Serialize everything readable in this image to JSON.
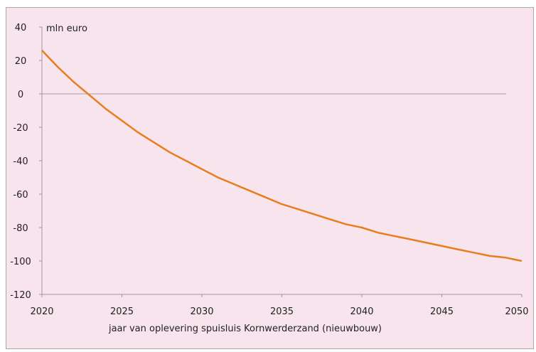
{
  "chart_data": {
    "type": "line",
    "title": "",
    "unit_label": "mln euro",
    "xlabel": "jaar van oplevering spuisluis Kornwerderzand (nieuwbouw)",
    "ylabel": "",
    "xlim": [
      2020,
      2050
    ],
    "ylim": [
      -120,
      40
    ],
    "x_ticks": [
      2020,
      2025,
      2030,
      2035,
      2040,
      2045,
      2050
    ],
    "y_ticks": [
      40,
      20,
      0,
      -20,
      -40,
      -60,
      -80,
      -100,
      -120
    ],
    "grid": false,
    "legend": "none",
    "colors": {
      "line": "#e87d1e",
      "zero_line": "#b0b0b0",
      "axis": "#999999",
      "background": "#f7e4ed"
    },
    "series": [
      {
        "x": [
          2020,
          2021,
          2022,
          2023,
          2024,
          2025,
          2026,
          2027,
          2028,
          2029,
          2030,
          2031,
          2032,
          2033,
          2034,
          2035,
          2036,
          2037,
          2038,
          2039,
          2040,
          2041,
          2042,
          2043,
          2044,
          2045,
          2046,
          2047,
          2048,
          2049,
          2050
        ],
        "values": [
          26,
          16,
          7,
          -1,
          -9,
          -16,
          -23,
          -29,
          -35,
          -40,
          -45,
          -50,
          -54,
          -58,
          -62,
          -66,
          -69,
          -72,
          -75,
          -78,
          -80,
          -83,
          -85,
          -87,
          -89,
          -91,
          -93,
          -95,
          -97,
          -98,
          -100
        ]
      }
    ]
  }
}
